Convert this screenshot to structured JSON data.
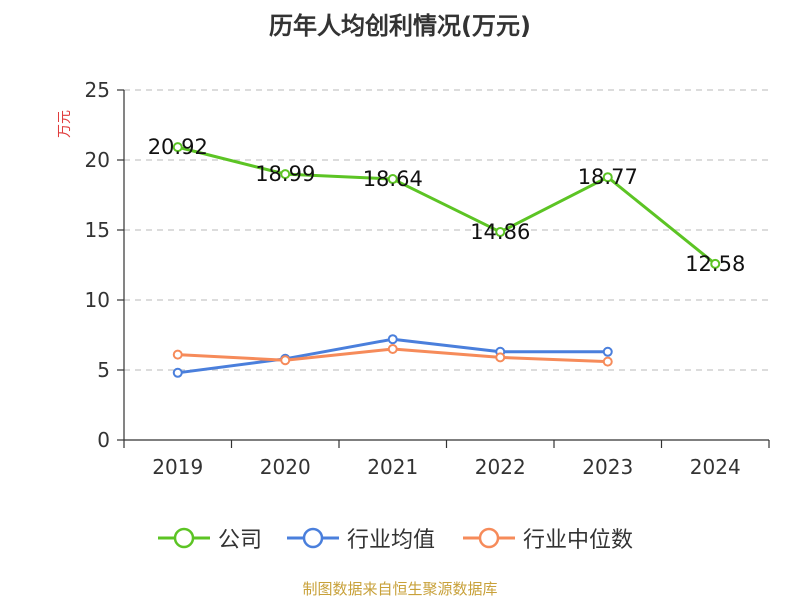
{
  "title": "历年人均创利情况(万元)",
  "source": "制图数据来自恒生聚源数据库",
  "chart_data": {
    "type": "line",
    "title": "历年人均创利情况(万元)",
    "ylabel": "万元",
    "xlabel": "",
    "ylim": [
      0,
      25
    ],
    "yticks": [
      0,
      5,
      10,
      15,
      20,
      25
    ],
    "categories": [
      "2019",
      "2020",
      "2021",
      "2022",
      "2023",
      "2024"
    ],
    "grid": true,
    "legend_position": "bottom",
    "series": [
      {
        "name": "公司",
        "color": "#5cc424",
        "values": [
          20.92,
          18.99,
          18.64,
          14.86,
          18.77,
          12.58
        ],
        "labels": [
          "20.92",
          "18.99",
          "18.64",
          "14.86",
          "18.77",
          "12.58"
        ]
      },
      {
        "name": "行业均值",
        "color": "#4a7fdc",
        "values": [
          4.8,
          5.8,
          7.2,
          6.3,
          6.3,
          null
        ]
      },
      {
        "name": "行业中位数",
        "color": "#f68b5a",
        "values": [
          6.1,
          5.7,
          6.5,
          5.9,
          5.6,
          null
        ]
      }
    ]
  }
}
